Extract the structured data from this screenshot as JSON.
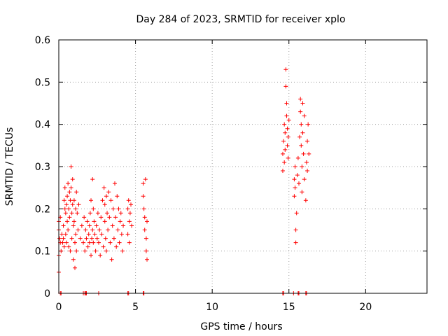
{
  "chart_data": {
    "type": "scatter",
    "title": "Day 284 of 2023, SRMTID for receiver xplo",
    "xlabel": "GPS time / hours",
    "ylabel": "SRMTID / TECUs",
    "xlim": [
      0,
      24
    ],
    "ylim": [
      0,
      0.6
    ],
    "xticks": [
      0,
      5,
      10,
      15,
      20
    ],
    "yticks": [
      0,
      0.1,
      0.2,
      0.3,
      0.4,
      0.5,
      0.6
    ],
    "xtick_labels": [
      "0",
      "5",
      "10",
      "15",
      "20"
    ],
    "ytick_labels": [
      "0",
      "0.1",
      "0.2",
      "0.3",
      "0.4",
      "0.5",
      "0.6"
    ],
    "grid": true,
    "marker": "+",
    "color": "#ff0000",
    "series": [
      {
        "name": "SRMTID",
        "points": [
          [
            0.0,
            0.09
          ],
          [
            0.0,
            0.05
          ],
          [
            0.0,
            0.15
          ],
          [
            0.0,
            0.17
          ],
          [
            0.05,
            0.13
          ],
          [
            0.1,
            0.18
          ],
          [
            0.1,
            0.12
          ],
          [
            0.15,
            0.1
          ],
          [
            0.2,
            0.14
          ],
          [
            0.25,
            0.12
          ],
          [
            0.3,
            0.13
          ],
          [
            0.3,
            0.16
          ],
          [
            0.35,
            0.22
          ],
          [
            0.35,
            0.11
          ],
          [
            0.4,
            0.25
          ],
          [
            0.4,
            0.2
          ],
          [
            0.45,
            0.19
          ],
          [
            0.45,
            0.14
          ],
          [
            0.5,
            0.21
          ],
          [
            0.5,
            0.12
          ],
          [
            0.55,
            0.23
          ],
          [
            0.55,
            0.17
          ],
          [
            0.6,
            0.26
          ],
          [
            0.6,
            0.15
          ],
          [
            0.65,
            0.2
          ],
          [
            0.65,
            0.11
          ],
          [
            0.7,
            0.24
          ],
          [
            0.7,
            0.18
          ],
          [
            0.75,
            0.1
          ],
          [
            0.75,
            0.22
          ],
          [
            0.8,
            0.3
          ],
          [
            0.8,
            0.25
          ],
          [
            0.85,
            0.19
          ],
          [
            0.85,
            0.13
          ],
          [
            0.9,
            0.27
          ],
          [
            0.9,
            0.21
          ],
          [
            0.95,
            0.16
          ],
          [
            0.95,
            0.08
          ],
          [
            1.0,
            0.22
          ],
          [
            1.0,
            0.17
          ],
          [
            1.05,
            0.12
          ],
          [
            1.05,
            0.06
          ],
          [
            1.1,
            0.2
          ],
          [
            1.1,
            0.14
          ],
          [
            1.15,
            0.24
          ],
          [
            1.15,
            0.1
          ],
          [
            1.2,
            0.19
          ],
          [
            1.25,
            0.15
          ],
          [
            1.3,
            0.21
          ],
          [
            1.4,
            0.13
          ],
          [
            1.5,
            0.16
          ],
          [
            1.6,
            0.12
          ],
          [
            1.65,
            0.18
          ],
          [
            1.7,
            0.1
          ],
          [
            1.75,
            0.15
          ],
          [
            1.8,
            0.13
          ],
          [
            1.85,
            0.17
          ],
          [
            1.9,
            0.11
          ],
          [
            1.95,
            0.14
          ],
          [
            2.0,
            0.12
          ],
          [
            2.0,
            0.16
          ],
          [
            2.05,
            0.19
          ],
          [
            2.1,
            0.22
          ],
          [
            2.1,
            0.09
          ],
          [
            2.15,
            0.13
          ],
          [
            2.2,
            0.27
          ],
          [
            2.2,
            0.15
          ],
          [
            2.25,
            0.2
          ],
          [
            2.25,
            0.12
          ],
          [
            2.3,
            0.17
          ],
          [
            2.35,
            0.14
          ],
          [
            2.4,
            0.1
          ],
          [
            2.45,
            0.16
          ],
          [
            2.5,
            0.13
          ],
          [
            2.55,
            0.19
          ],
          [
            2.6,
            0.12
          ],
          [
            2.65,
            0.15
          ],
          [
            2.7,
            0.09
          ],
          [
            2.75,
            0.18
          ],
          [
            2.8,
            0.14
          ],
          [
            2.85,
            0.22
          ],
          [
            2.9,
            0.11
          ],
          [
            2.95,
            0.25
          ],
          [
            3.0,
            0.17
          ],
          [
            3.0,
            0.21
          ],
          [
            3.05,
            0.13
          ],
          [
            3.1,
            0.23
          ],
          [
            3.1,
            0.1
          ],
          [
            3.15,
            0.19
          ],
          [
            3.2,
            0.15
          ],
          [
            3.25,
            0.24
          ],
          [
            3.3,
            0.18
          ],
          [
            3.35,
            0.12
          ],
          [
            3.4,
            0.22
          ],
          [
            3.45,
            0.08
          ],
          [
            3.5,
            0.16
          ],
          [
            3.55,
            0.2
          ],
          [
            3.6,
            0.13
          ],
          [
            3.65,
            0.26
          ],
          [
            3.7,
            0.18
          ],
          [
            3.75,
            0.11
          ],
          [
            3.8,
            0.23
          ],
          [
            3.85,
            0.15
          ],
          [
            3.9,
            0.2
          ],
          [
            3.95,
            0.12
          ],
          [
            4.0,
            0.17
          ],
          [
            4.05,
            0.19
          ],
          [
            4.1,
            0.14
          ],
          [
            4.15,
            0.1
          ],
          [
            4.2,
            0.16
          ],
          [
            4.5,
            0.2
          ],
          [
            4.5,
            0.14
          ],
          [
            4.55,
            0.22
          ],
          [
            4.6,
            0.17
          ],
          [
            4.6,
            0.12
          ],
          [
            4.65,
            0.19
          ],
          [
            4.7,
            0.21
          ],
          [
            4.75,
            0.16
          ],
          [
            5.5,
            0.23
          ],
          [
            5.5,
            0.26
          ],
          [
            5.55,
            0.2
          ],
          [
            5.6,
            0.18
          ],
          [
            5.6,
            0.15
          ],
          [
            5.65,
            0.27
          ],
          [
            5.7,
            0.13
          ],
          [
            5.7,
            0.1
          ],
          [
            5.75,
            0.08
          ],
          [
            5.75,
            0.17
          ],
          [
            14.6,
            0.29
          ],
          [
            14.6,
            0.33
          ],
          [
            14.65,
            0.36
          ],
          [
            14.7,
            0.31
          ],
          [
            14.7,
            0.4
          ],
          [
            14.75,
            0.38
          ],
          [
            14.75,
            0.34
          ],
          [
            14.8,
            0.53
          ],
          [
            14.8,
            0.49
          ],
          [
            14.85,
            0.45
          ],
          [
            14.85,
            0.42
          ],
          [
            14.9,
            0.39
          ],
          [
            14.9,
            0.35
          ],
          [
            14.95,
            0.37
          ],
          [
            14.95,
            0.32
          ],
          [
            15.0,
            0.41
          ],
          [
            15.35,
            0.27
          ],
          [
            15.35,
            0.23
          ],
          [
            15.4,
            0.3
          ],
          [
            15.4,
            0.25
          ],
          [
            15.45,
            0.15
          ],
          [
            15.45,
            0.12
          ],
          [
            15.5,
            0.19
          ],
          [
            15.55,
            0.28
          ],
          [
            15.6,
            0.32
          ],
          [
            15.65,
            0.26
          ],
          [
            15.7,
            0.37
          ],
          [
            15.75,
            0.46
          ],
          [
            15.75,
            0.43
          ],
          [
            15.8,
            0.4
          ],
          [
            15.8,
            0.35
          ],
          [
            15.85,
            0.3
          ],
          [
            15.85,
            0.24
          ],
          [
            15.9,
            0.45
          ],
          [
            15.9,
            0.38
          ],
          [
            15.95,
            0.33
          ],
          [
            16.0,
            0.27
          ],
          [
            16.0,
            0.42
          ],
          [
            16.1,
            0.22
          ],
          [
            16.15,
            0.31
          ],
          [
            16.2,
            0.36
          ],
          [
            16.2,
            0.29
          ],
          [
            16.25,
            0.4
          ],
          [
            16.3,
            0.33
          ]
        ]
      }
    ],
    "zero_points_x": [
      0.1,
      0.15,
      1.6,
      1.7,
      1.75,
      1.8,
      2.6,
      4.5,
      4.55,
      5.5,
      5.55,
      14.6,
      14.65,
      15.3,
      15.6,
      15.65,
      16.1,
      16.15
    ]
  }
}
